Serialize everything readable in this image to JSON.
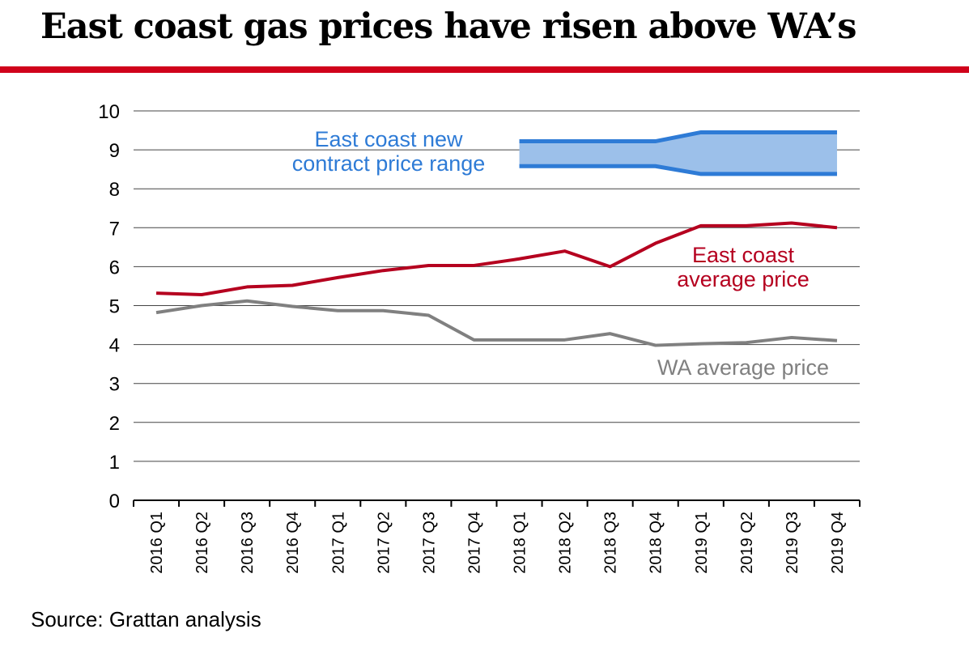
{
  "title": "East coast gas prices have risen above WA’s",
  "source": "Source: Grattan analysis",
  "colors": {
    "east": "#b5001f",
    "wa": "#808080",
    "range_line": "#2e7bd6",
    "range_fill": "#9cc0ea",
    "rule": "#d0021b"
  },
  "chart_data": {
    "type": "line",
    "title": "East coast gas prices have risen above WA’s",
    "xlabel": "",
    "ylabel": "",
    "ylim": [
      0,
      10
    ],
    "yticks": [
      "0",
      "1",
      "2",
      "3",
      "4",
      "5",
      "6",
      "7",
      "8",
      "9",
      "10"
    ],
    "categories": [
      "2016 Q1",
      "2016 Q2",
      "2016 Q3",
      "2016 Q4",
      "2017 Q1",
      "2017 Q2",
      "2017 Q3",
      "2017 Q4",
      "2018 Q1",
      "2018 Q2",
      "2018 Q3",
      "2018 Q4",
      "2019 Q1",
      "2019 Q2",
      "2019 Q3",
      "2019 Q4"
    ],
    "series": [
      {
        "name": "East coast average price",
        "label": [
          "East coast",
          "average price"
        ],
        "values": [
          5.32,
          5.28,
          5.48,
          5.52,
          5.72,
          5.9,
          6.03,
          6.03,
          6.2,
          6.4,
          6.0,
          6.6,
          7.05,
          7.05,
          7.12,
          7.0
        ]
      },
      {
        "name": "WA average price",
        "label": [
          "WA average price"
        ],
        "values": [
          4.82,
          5.0,
          5.12,
          4.98,
          4.87,
          4.87,
          4.75,
          4.12,
          4.12,
          4.12,
          4.28,
          3.98,
          4.02,
          4.05,
          4.18,
          4.1
        ]
      }
    ],
    "range": {
      "name": "East coast new contract price range",
      "label": [
        "East coast new",
        "contract price range"
      ],
      "start_index": 8,
      "upper": [
        9.22,
        9.22,
        9.22,
        9.22,
        9.45,
        9.45,
        9.45,
        9.45
      ],
      "lower": [
        8.58,
        8.58,
        8.58,
        8.58,
        8.38,
        8.38,
        8.38,
        8.38
      ]
    },
    "grid": true,
    "legend": "inline labels"
  }
}
